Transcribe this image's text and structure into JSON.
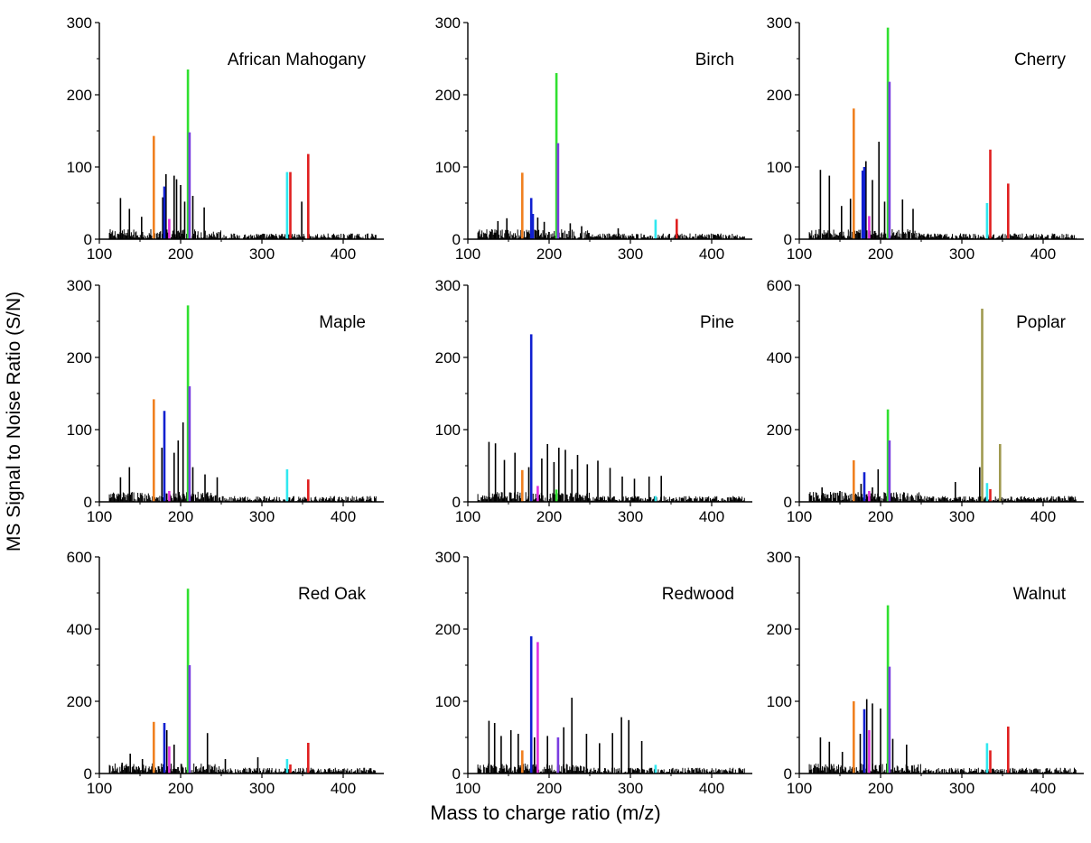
{
  "ylabel": "MS Signal to Noise Ratio (S/N)",
  "xlabel": "Mass to charge ratio (m/z)",
  "colors": {
    "orange": "#f08020",
    "green": "#30e030",
    "violet": "#7a3ce0",
    "blue": "#1020d0",
    "magenta": "#e030e0",
    "cyan": "#30e8f0",
    "red": "#e02020",
    "olive": "#a09a50",
    "noise": "#000000"
  },
  "chart_data": [
    {
      "type": "bar",
      "title": "African Mahogany",
      "xlim": [
        100,
        450
      ],
      "ylim": [
        0,
        300
      ],
      "xticks": [
        100,
        200,
        300,
        400
      ],
      "yticks": [
        0,
        100,
        200,
        300
      ],
      "peaks": [
        {
          "mz": 167,
          "value": 143,
          "color": "orange"
        },
        {
          "mz": 180,
          "value": 73,
          "color": "blue"
        },
        {
          "mz": 186,
          "value": 28,
          "color": "magenta"
        },
        {
          "mz": 209,
          "value": 235,
          "color": "green"
        },
        {
          "mz": 211,
          "value": 148,
          "color": "violet"
        },
        {
          "mz": 331,
          "value": 93,
          "color": "cyan"
        },
        {
          "mz": 335,
          "value": 93,
          "color": "red"
        },
        {
          "mz": 357,
          "value": 118,
          "color": "red"
        }
      ],
      "noise": [
        {
          "mz": 126,
          "value": 57
        },
        {
          "mz": 137,
          "value": 42
        },
        {
          "mz": 152,
          "value": 31
        },
        {
          "mz": 178,
          "value": 58
        },
        {
          "mz": 182,
          "value": 90
        },
        {
          "mz": 192,
          "value": 88
        },
        {
          "mz": 195,
          "value": 83
        },
        {
          "mz": 200,
          "value": 75
        },
        {
          "mz": 205,
          "value": 52
        },
        {
          "mz": 215,
          "value": 60
        },
        {
          "mz": 229,
          "value": 44
        },
        {
          "mz": 349,
          "value": 52
        }
      ]
    },
    {
      "type": "bar",
      "title": "Birch",
      "xlim": [
        100,
        450
      ],
      "ylim": [
        0,
        300
      ],
      "xticks": [
        100,
        200,
        300,
        400
      ],
      "yticks": [
        0,
        100,
        200,
        300
      ],
      "peaks": [
        {
          "mz": 167,
          "value": 92,
          "color": "orange"
        },
        {
          "mz": 178,
          "value": 57,
          "color": "blue"
        },
        {
          "mz": 180,
          "value": 35,
          "color": "blue"
        },
        {
          "mz": 209,
          "value": 230,
          "color": "green"
        },
        {
          "mz": 211,
          "value": 133,
          "color": "violet"
        },
        {
          "mz": 331,
          "value": 27,
          "color": "cyan"
        },
        {
          "mz": 357,
          "value": 28,
          "color": "red"
        }
      ],
      "noise": [
        {
          "mz": 137,
          "value": 25
        },
        {
          "mz": 148,
          "value": 29
        },
        {
          "mz": 186,
          "value": 30
        },
        {
          "mz": 194,
          "value": 24
        },
        {
          "mz": 226,
          "value": 22
        },
        {
          "mz": 240,
          "value": 18
        },
        {
          "mz": 285,
          "value": 15
        }
      ]
    },
    {
      "type": "bar",
      "title": "Cherry",
      "xlim": [
        100,
        450
      ],
      "ylim": [
        0,
        300
      ],
      "xticks": [
        100,
        200,
        300,
        400
      ],
      "yticks": [
        0,
        100,
        200,
        300
      ],
      "peaks": [
        {
          "mz": 167,
          "value": 181,
          "color": "orange"
        },
        {
          "mz": 178,
          "value": 95,
          "color": "blue"
        },
        {
          "mz": 180,
          "value": 100,
          "color": "blue"
        },
        {
          "mz": 186,
          "value": 32,
          "color": "magenta"
        },
        {
          "mz": 209,
          "value": 293,
          "color": "green"
        },
        {
          "mz": 211,
          "value": 218,
          "color": "violet"
        },
        {
          "mz": 331,
          "value": 50,
          "color": "cyan"
        },
        {
          "mz": 335,
          "value": 124,
          "color": "red"
        },
        {
          "mz": 357,
          "value": 77,
          "color": "red"
        }
      ],
      "noise": [
        {
          "mz": 126,
          "value": 96
        },
        {
          "mz": 137,
          "value": 88
        },
        {
          "mz": 152,
          "value": 46
        },
        {
          "mz": 163,
          "value": 56
        },
        {
          "mz": 182,
          "value": 108
        },
        {
          "mz": 190,
          "value": 82
        },
        {
          "mz": 198,
          "value": 135
        },
        {
          "mz": 205,
          "value": 52
        },
        {
          "mz": 227,
          "value": 55
        },
        {
          "mz": 240,
          "value": 42
        }
      ]
    },
    {
      "type": "bar",
      "title": "Maple",
      "xlim": [
        100,
        450
      ],
      "ylim": [
        0,
        300
      ],
      "xticks": [
        100,
        200,
        300,
        400
      ],
      "yticks": [
        0,
        100,
        200,
        300
      ],
      "peaks": [
        {
          "mz": 167,
          "value": 142,
          "color": "orange"
        },
        {
          "mz": 180,
          "value": 126,
          "color": "blue"
        },
        {
          "mz": 186,
          "value": 15,
          "color": "magenta"
        },
        {
          "mz": 209,
          "value": 272,
          "color": "green"
        },
        {
          "mz": 211,
          "value": 160,
          "color": "violet"
        },
        {
          "mz": 331,
          "value": 45,
          "color": "cyan"
        },
        {
          "mz": 357,
          "value": 31,
          "color": "red"
        }
      ],
      "noise": [
        {
          "mz": 126,
          "value": 34
        },
        {
          "mz": 137,
          "value": 48
        },
        {
          "mz": 177,
          "value": 75
        },
        {
          "mz": 192,
          "value": 68
        },
        {
          "mz": 197,
          "value": 85
        },
        {
          "mz": 203,
          "value": 110
        },
        {
          "mz": 215,
          "value": 48
        },
        {
          "mz": 230,
          "value": 38
        },
        {
          "mz": 245,
          "value": 34
        }
      ]
    },
    {
      "type": "bar",
      "title": "Pine",
      "xlim": [
        100,
        450
      ],
      "ylim": [
        0,
        300
      ],
      "xticks": [
        100,
        200,
        300,
        400
      ],
      "yticks": [
        0,
        100,
        200,
        300
      ],
      "peaks": [
        {
          "mz": 167,
          "value": 44,
          "color": "orange"
        },
        {
          "mz": 178,
          "value": 232,
          "color": "blue"
        },
        {
          "mz": 186,
          "value": 22,
          "color": "magenta"
        },
        {
          "mz": 209,
          "value": 17,
          "color": "green"
        },
        {
          "mz": 331,
          "value": 8,
          "color": "cyan"
        }
      ],
      "noise": [
        {
          "mz": 126,
          "value": 83
        },
        {
          "mz": 134,
          "value": 81
        },
        {
          "mz": 145,
          "value": 58
        },
        {
          "mz": 158,
          "value": 68
        },
        {
          "mz": 175,
          "value": 48
        },
        {
          "mz": 191,
          "value": 60
        },
        {
          "mz": 198,
          "value": 80
        },
        {
          "mz": 206,
          "value": 55
        },
        {
          "mz": 212,
          "value": 75
        },
        {
          "mz": 220,
          "value": 72
        },
        {
          "mz": 228,
          "value": 45
        },
        {
          "mz": 235,
          "value": 65
        },
        {
          "mz": 247,
          "value": 52
        },
        {
          "mz": 260,
          "value": 57
        },
        {
          "mz": 275,
          "value": 47
        },
        {
          "mz": 290,
          "value": 35
        },
        {
          "mz": 305,
          "value": 32
        },
        {
          "mz": 323,
          "value": 35
        },
        {
          "mz": 338,
          "value": 36
        }
      ]
    },
    {
      "type": "bar",
      "title": "Poplar",
      "xlim": [
        100,
        450
      ],
      "ylim": [
        0,
        600
      ],
      "xticks": [
        100,
        200,
        300,
        400
      ],
      "yticks": [
        0,
        200,
        400,
        600
      ],
      "peaks": [
        {
          "mz": 167,
          "value": 115,
          "color": "orange"
        },
        {
          "mz": 180,
          "value": 82,
          "color": "blue"
        },
        {
          "mz": 186,
          "value": 30,
          "color": "magenta"
        },
        {
          "mz": 209,
          "value": 256,
          "color": "green"
        },
        {
          "mz": 211,
          "value": 170,
          "color": "violet"
        },
        {
          "mz": 325,
          "value": 535,
          "color": "olive"
        },
        {
          "mz": 331,
          "value": 52,
          "color": "cyan"
        },
        {
          "mz": 335,
          "value": 35,
          "color": "red"
        },
        {
          "mz": 347,
          "value": 160,
          "color": "olive"
        }
      ],
      "noise": [
        {
          "mz": 128,
          "value": 40
        },
        {
          "mz": 150,
          "value": 30
        },
        {
          "mz": 176,
          "value": 50
        },
        {
          "mz": 190,
          "value": 40
        },
        {
          "mz": 197,
          "value": 90
        },
        {
          "mz": 292,
          "value": 55
        },
        {
          "mz": 322,
          "value": 96
        }
      ]
    },
    {
      "type": "bar",
      "title": "Red Oak",
      "xlim": [
        100,
        450
      ],
      "ylim": [
        0,
        600
      ],
      "xticks": [
        100,
        200,
        300,
        400
      ],
      "yticks": [
        0,
        200,
        400,
        600
      ],
      "peaks": [
        {
          "mz": 167,
          "value": 143,
          "color": "orange"
        },
        {
          "mz": 180,
          "value": 140,
          "color": "blue"
        },
        {
          "mz": 186,
          "value": 75,
          "color": "magenta"
        },
        {
          "mz": 209,
          "value": 512,
          "color": "green"
        },
        {
          "mz": 211,
          "value": 300,
          "color": "violet"
        },
        {
          "mz": 331,
          "value": 40,
          "color": "cyan"
        },
        {
          "mz": 335,
          "value": 25,
          "color": "red"
        },
        {
          "mz": 357,
          "value": 85,
          "color": "red"
        }
      ],
      "noise": [
        {
          "mz": 128,
          "value": 30
        },
        {
          "mz": 138,
          "value": 55
        },
        {
          "mz": 153,
          "value": 40
        },
        {
          "mz": 183,
          "value": 120
        },
        {
          "mz": 192,
          "value": 80
        },
        {
          "mz": 233,
          "value": 112
        },
        {
          "mz": 255,
          "value": 40
        },
        {
          "mz": 295,
          "value": 45
        }
      ]
    },
    {
      "type": "bar",
      "title": "Redwood",
      "xlim": [
        100,
        450
      ],
      "ylim": [
        0,
        300
      ],
      "xticks": [
        100,
        200,
        300,
        400
      ],
      "yticks": [
        0,
        100,
        200,
        300
      ],
      "peaks": [
        {
          "mz": 167,
          "value": 32,
          "color": "orange"
        },
        {
          "mz": 178,
          "value": 190,
          "color": "blue"
        },
        {
          "mz": 186,
          "value": 182,
          "color": "magenta"
        },
        {
          "mz": 211,
          "value": 50,
          "color": "violet"
        },
        {
          "mz": 331,
          "value": 12,
          "color": "cyan"
        }
      ],
      "noise": [
        {
          "mz": 126,
          "value": 73
        },
        {
          "mz": 133,
          "value": 70
        },
        {
          "mz": 141,
          "value": 52
        },
        {
          "mz": 153,
          "value": 60
        },
        {
          "mz": 162,
          "value": 55
        },
        {
          "mz": 182,
          "value": 50
        },
        {
          "mz": 198,
          "value": 52
        },
        {
          "mz": 218,
          "value": 64
        },
        {
          "mz": 228,
          "value": 105
        },
        {
          "mz": 246,
          "value": 55
        },
        {
          "mz": 262,
          "value": 42
        },
        {
          "mz": 278,
          "value": 56
        },
        {
          "mz": 289,
          "value": 78
        },
        {
          "mz": 298,
          "value": 74
        },
        {
          "mz": 314,
          "value": 45
        }
      ]
    },
    {
      "type": "bar",
      "title": "Walnut",
      "xlim": [
        100,
        450
      ],
      "ylim": [
        0,
        300
      ],
      "xticks": [
        100,
        200,
        300,
        400
      ],
      "yticks": [
        0,
        100,
        200,
        300
      ],
      "peaks": [
        {
          "mz": 167,
          "value": 100,
          "color": "orange"
        },
        {
          "mz": 180,
          "value": 89,
          "color": "blue"
        },
        {
          "mz": 186,
          "value": 60,
          "color": "magenta"
        },
        {
          "mz": 209,
          "value": 233,
          "color": "green"
        },
        {
          "mz": 211,
          "value": 148,
          "color": "violet"
        },
        {
          "mz": 331,
          "value": 42,
          "color": "cyan"
        },
        {
          "mz": 335,
          "value": 32,
          "color": "red"
        },
        {
          "mz": 357,
          "value": 65,
          "color": "red"
        }
      ],
      "noise": [
        {
          "mz": 126,
          "value": 50
        },
        {
          "mz": 137,
          "value": 44
        },
        {
          "mz": 153,
          "value": 30
        },
        {
          "mz": 175,
          "value": 55
        },
        {
          "mz": 183,
          "value": 103
        },
        {
          "mz": 190,
          "value": 97
        },
        {
          "mz": 200,
          "value": 90
        },
        {
          "mz": 215,
          "value": 48
        },
        {
          "mz": 232,
          "value": 40
        }
      ]
    }
  ]
}
